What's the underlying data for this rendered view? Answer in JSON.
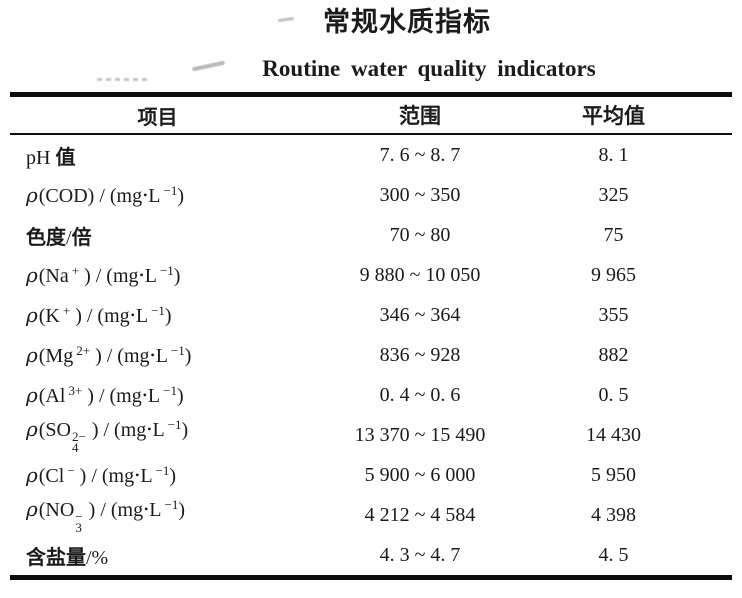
{
  "style": {
    "ink": "#1b1b1b",
    "rule_color": "#0d0d0d",
    "background": "#ffffff"
  },
  "chart_data": {
    "type": "table",
    "title": "常规水质指标",
    "subtitle": "Routine water quality indicators",
    "columns": [
      "项目",
      "范围",
      "平均值"
    ],
    "rows": [
      {
        "item_text": "pH 值",
        "item": [
          {
            "t": "pH ",
            "c": "r"
          },
          {
            "t": "值",
            "c": "b"
          }
        ],
        "range": "7. 6 ~ 8. 7",
        "average": "8. 1"
      },
      {
        "item_text": "ρ(COD)/(mg·L⁻¹)",
        "item": [
          {
            "t": "ρ",
            "c": "i"
          },
          {
            "t": "(COD) / (mg",
            "c": "r"
          },
          {
            "t": "•",
            "c": "dot"
          },
          {
            "t": "L",
            "c": "r"
          },
          {
            "t": "−1",
            "c": "sup"
          },
          {
            "t": ")",
            "c": "r"
          }
        ],
        "range": "300 ~ 350",
        "average": "325"
      },
      {
        "item_text": "色度/倍",
        "item": [
          {
            "t": "色度",
            "c": "b"
          },
          {
            "t": "/",
            "c": "r"
          },
          {
            "t": "倍",
            "c": "b"
          }
        ],
        "range": "70 ~ 80",
        "average": "75"
      },
      {
        "item_text": "ρ(Na⁺)/(mg·L⁻¹)",
        "item": [
          {
            "t": "ρ",
            "c": "i"
          },
          {
            "t": "(Na",
            "c": "r"
          },
          {
            "t": "+",
            "c": "sup"
          },
          {
            "t": " ) / (mg",
            "c": "r"
          },
          {
            "t": "•",
            "c": "dot"
          },
          {
            "t": "L",
            "c": "r"
          },
          {
            "t": "−1",
            "c": "sup"
          },
          {
            "t": ")",
            "c": "r"
          }
        ],
        "range": "9 880 ~ 10 050",
        "average": "9 965"
      },
      {
        "item_text": "ρ(K⁺)/(mg·L⁻¹)",
        "item": [
          {
            "t": "ρ",
            "c": "i"
          },
          {
            "t": "(K",
            "c": "r"
          },
          {
            "t": "+",
            "c": "sup"
          },
          {
            "t": " ) / (mg",
            "c": "r"
          },
          {
            "t": "•",
            "c": "dot"
          },
          {
            "t": "L",
            "c": "r"
          },
          {
            "t": "−1",
            "c": "sup"
          },
          {
            "t": ")",
            "c": "r"
          }
        ],
        "range": "346 ~ 364",
        "average": "355"
      },
      {
        "item_text": "ρ(Mg²⁺)/(mg·L⁻¹)",
        "item": [
          {
            "t": "ρ",
            "c": "i"
          },
          {
            "t": "(Mg",
            "c": "r"
          },
          {
            "t": "2+",
            "c": "sup"
          },
          {
            "t": " ) / (mg",
            "c": "r"
          },
          {
            "t": "•",
            "c": "dot"
          },
          {
            "t": "L",
            "c": "r"
          },
          {
            "t": "−1",
            "c": "sup"
          },
          {
            "t": ")",
            "c": "r"
          }
        ],
        "range": "836 ~ 928",
        "average": "882"
      },
      {
        "item_text": "ρ(Al³⁺)/(mg·L⁻¹)",
        "item": [
          {
            "t": "ρ",
            "c": "i"
          },
          {
            "t": "(Al",
            "c": "r"
          },
          {
            "t": "3+",
            "c": "sup"
          },
          {
            "t": " ) / (mg",
            "c": "r"
          },
          {
            "t": "•",
            "c": "dot"
          },
          {
            "t": "L",
            "c": "r"
          },
          {
            "t": "−1",
            "c": "sup"
          },
          {
            "t": ")",
            "c": "r"
          }
        ],
        "range": "0. 4 ~ 0. 6",
        "average": "0. 5"
      },
      {
        "item_text": "ρ(SO₄²⁻)/(mg·L⁻¹)",
        "item": [
          {
            "t": "ρ",
            "c": "i"
          },
          {
            "t": "(SO",
            "c": "r"
          },
          {
            "c": "stk",
            "top": "2−",
            "bot": "4"
          },
          {
            "t": " ) / (mg",
            "c": "r"
          },
          {
            "t": "•",
            "c": "dot"
          },
          {
            "t": "L",
            "c": "r"
          },
          {
            "t": "−1",
            "c": "sup"
          },
          {
            "t": ")",
            "c": "r"
          }
        ],
        "range": "13 370 ~ 15 490",
        "average": "14 430"
      },
      {
        "item_text": "ρ(Cl⁻)/(mg·L⁻¹)",
        "item": [
          {
            "t": "ρ",
            "c": "i"
          },
          {
            "t": "(Cl",
            "c": "r"
          },
          {
            "t": "−",
            "c": "sup"
          },
          {
            "t": " ) / (mg",
            "c": "r"
          },
          {
            "t": "•",
            "c": "dot"
          },
          {
            "t": "L",
            "c": "r"
          },
          {
            "t": "−1",
            "c": "sup"
          },
          {
            "t": ")",
            "c": "r"
          }
        ],
        "range": "5 900 ~ 6 000",
        "average": "5 950"
      },
      {
        "item_text": "ρ(NO₃⁻)/(mg·L⁻¹)",
        "item": [
          {
            "t": "ρ",
            "c": "i"
          },
          {
            "t": "(NO",
            "c": "r"
          },
          {
            "c": "stk",
            "top": "−",
            "bot": "3"
          },
          {
            "t": " ) / (mg",
            "c": "r"
          },
          {
            "t": "•",
            "c": "dot"
          },
          {
            "t": "L",
            "c": "r"
          },
          {
            "t": "−1",
            "c": "sup"
          },
          {
            "t": ")",
            "c": "r"
          }
        ],
        "range": "4 212 ~ 4 584",
        "average": "4 398"
      },
      {
        "item_text": "含盐量/%",
        "item": [
          {
            "t": "含盐量",
            "c": "b"
          },
          {
            "t": "/%",
            "c": "r"
          }
        ],
        "range": "4. 3 ~ 4. 7",
        "average": "4. 5"
      }
    ]
  }
}
